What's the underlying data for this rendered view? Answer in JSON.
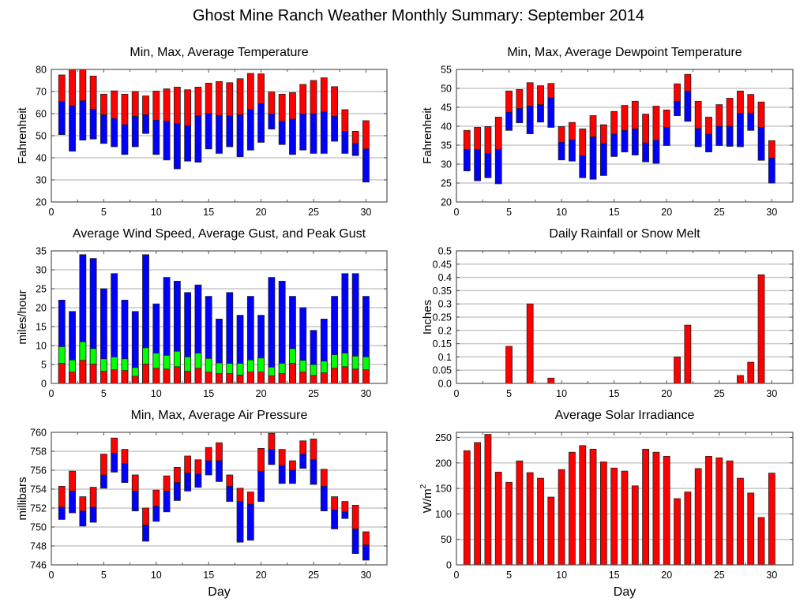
{
  "title": "Ghost Mine Ranch Weather Monthly Summary: September 2014",
  "colors": {
    "red": "#ff0000",
    "blue": "#0000ff",
    "green": "#00ff00",
    "grid": "#c8c8c8",
    "frame": "#555555"
  },
  "chart_data": [
    {
      "id": "temperature",
      "type": "bar",
      "style": "floating-range",
      "title": "Min, Max, Average Temperature",
      "xlabel": "",
      "ylabel": "Fahrenheit",
      "xlim": [
        0,
        32
      ],
      "ylim": [
        20,
        80
      ],
      "xticks": [
        0,
        5,
        10,
        15,
        20,
        25,
        30
      ],
      "yticks": [
        20,
        30,
        40,
        50,
        60,
        70,
        80
      ],
      "grid": true,
      "x": [
        1,
        2,
        3,
        4,
        5,
        6,
        7,
        8,
        9,
        10,
        11,
        12,
        13,
        14,
        15,
        16,
        17,
        18,
        19,
        20,
        21,
        22,
        23,
        24,
        25,
        26,
        27,
        28,
        29,
        30
      ],
      "series": [
        {
          "name": "Min",
          "values": [
            50.5,
            43,
            48,
            48.5,
            46.5,
            45,
            41.5,
            45,
            51,
            41.5,
            39,
            35,
            38.5,
            38,
            44,
            42,
            45,
            40.5,
            43.5,
            47,
            53,
            46,
            41.5,
            43.5,
            42,
            42,
            47.5,
            42,
            41,
            29
          ]
        },
        {
          "name": "Average",
          "values": [
            65.5,
            63.5,
            65.8,
            62,
            59.5,
            57.8,
            55,
            58.8,
            59.5,
            57,
            56.5,
            55.5,
            54.5,
            59,
            60,
            59.2,
            59,
            59.5,
            62,
            64.5,
            59.8,
            56.5,
            57.5,
            59.8,
            60,
            60.8,
            58.8,
            52,
            46.5,
            44
          ]
        },
        {
          "name": "Max",
          "values": [
            77.5,
            80,
            80,
            77,
            68.8,
            70.3,
            68.8,
            70,
            68,
            70.2,
            71.2,
            72,
            70.8,
            72,
            73.8,
            74.5,
            74,
            75.8,
            78.2,
            78,
            69.8,
            68.8,
            69.5,
            73.2,
            75,
            76.2,
            72.2,
            61.8,
            52,
            56.8
          ]
        }
      ]
    },
    {
      "id": "dewpoint",
      "type": "bar",
      "style": "floating-range",
      "title": "Min, Max, Average Dewpoint Temperature",
      "xlabel": "",
      "ylabel": "Fahrenheit",
      "xlim": [
        0,
        32
      ],
      "ylim": [
        20,
        55
      ],
      "xticks": [
        0,
        5,
        10,
        15,
        20,
        25,
        30
      ],
      "yticks": [
        20,
        25,
        30,
        35,
        40,
        45,
        50,
        55
      ],
      "grid": true,
      "x": [
        1,
        2,
        3,
        4,
        5,
        6,
        7,
        8,
        9,
        10,
        11,
        12,
        13,
        14,
        15,
        16,
        17,
        18,
        19,
        20,
        21,
        22,
        23,
        24,
        25,
        26,
        27,
        28,
        29,
        30
      ],
      "series": [
        {
          "name": "Min",
          "values": [
            28.2,
            25.6,
            26.4,
            24.8,
            38.9,
            40.9,
            38,
            41.1,
            39.7,
            31.1,
            30.8,
            26.4,
            26,
            27,
            32,
            33.2,
            32.4,
            30.6,
            30.2,
            34.9,
            42.8,
            41.3,
            34.6,
            33.2,
            34.9,
            34.7,
            34.6,
            38.9,
            31,
            25
          ]
        },
        {
          "name": "Average",
          "values": [
            33.9,
            33.8,
            32.8,
            33.9,
            43.7,
            44.7,
            45.3,
            45.7,
            47.5,
            35.8,
            36.4,
            32.2,
            37.2,
            35.4,
            37.9,
            38.9,
            39.3,
            35.6,
            36.3,
            39.7,
            46.6,
            49.3,
            39.4,
            37.9,
            40,
            40,
            43.4,
            43.4,
            39.7,
            31.6
          ]
        },
        {
          "name": "Max",
          "values": [
            38.9,
            39.7,
            39.9,
            42.4,
            49.3,
            49.7,
            51.5,
            50.7,
            51.3,
            39.9,
            41,
            39.3,
            42.8,
            40.4,
            43.9,
            45.5,
            46.6,
            43.2,
            45.3,
            44.3,
            51.2,
            53.7,
            46.6,
            42.4,
            45.7,
            47.4,
            49.3,
            48.4,
            46.4,
            36.2
          ]
        }
      ]
    },
    {
      "id": "wind",
      "type": "bar",
      "style": "overlaid",
      "title": "Average Wind Speed, Average Gust, and Peak Gust",
      "xlabel": "",
      "ylabel": "miles/hour",
      "xlim": [
        0,
        32
      ],
      "ylim": [
        0,
        35
      ],
      "xticks": [
        0,
        5,
        10,
        15,
        20,
        25,
        30
      ],
      "yticks": [
        0,
        5,
        10,
        15,
        20,
        25,
        30,
        35
      ],
      "grid": true,
      "x": [
        1,
        2,
        3,
        4,
        5,
        6,
        7,
        8,
        9,
        10,
        11,
        12,
        13,
        14,
        15,
        16,
        17,
        18,
        19,
        20,
        21,
        22,
        23,
        24,
        25,
        26,
        27,
        28,
        29,
        30
      ],
      "series": [
        {
          "name": "Peak Gust",
          "values": [
            22,
            19,
            34,
            33,
            25,
            29,
            22,
            19,
            34,
            21,
            28,
            27,
            24,
            26,
            23,
            17,
            24,
            18,
            23,
            18,
            28,
            27,
            23,
            20,
            14,
            17,
            23,
            29,
            29,
            23
          ]
        },
        {
          "name": "Average Gust",
          "values": [
            9.7,
            6.2,
            11,
            9.2,
            6.5,
            7,
            6.5,
            4.2,
            9.4,
            8,
            7.4,
            8.5,
            7,
            8,
            6.6,
            5.4,
            5.3,
            5.3,
            6.2,
            6.7,
            4.3,
            5.3,
            9.2,
            6.1,
            5,
            5.9,
            7.6,
            8,
            7.2,
            7
          ]
        },
        {
          "name": "Average Wind Speed",
          "values": [
            5.3,
            3,
            6.1,
            5.1,
            3.2,
            3.6,
            3.4,
            1.9,
            5.1,
            4,
            3.8,
            4.4,
            3.2,
            4,
            3,
            2.6,
            2.6,
            2.2,
            3,
            3,
            2,
            2.6,
            5.3,
            3,
            2.1,
            2.8,
            4,
            4.4,
            3.8,
            3.6
          ]
        }
      ]
    },
    {
      "id": "rainfall",
      "type": "bar",
      "title": "Daily Rainfall or Snow Melt",
      "xlabel": "",
      "ylabel": "Inches",
      "xlim": [
        0,
        32
      ],
      "ylim": [
        0,
        0.5
      ],
      "xticks": [
        0,
        5,
        10,
        15,
        20,
        25,
        30
      ],
      "yticks": [
        "0.0",
        "0.05",
        "0.1",
        "0.15",
        "0.2",
        "0.25",
        "0.3",
        "0.35",
        "0.4",
        "0.45",
        "0.5"
      ],
      "grid": true,
      "x": [
        5,
        7,
        9,
        21,
        22,
        27,
        28,
        29
      ],
      "values": [
        0.14,
        0.3,
        0.02,
        0.1,
        0.22,
        0.03,
        0.08,
        0.41
      ]
    },
    {
      "id": "pressure",
      "type": "bar",
      "style": "floating-range",
      "title": "Min, Max, Average Air Pressure",
      "xlabel": "Day",
      "ylabel": "millibars",
      "xlim": [
        0,
        32
      ],
      "ylim": [
        746,
        760
      ],
      "xticks": [
        0,
        5,
        10,
        15,
        20,
        25,
        30
      ],
      "yticks": [
        746,
        748,
        750,
        752,
        754,
        756,
        758,
        760
      ],
      "grid": true,
      "x": [
        1,
        2,
        3,
        4,
        5,
        6,
        7,
        8,
        9,
        10,
        11,
        12,
        13,
        14,
        15,
        16,
        17,
        18,
        19,
        20,
        21,
        22,
        23,
        24,
        25,
        26,
        27,
        28,
        29,
        30
      ],
      "series": [
        {
          "name": "Min",
          "values": [
            750.8,
            751.5,
            750.1,
            750.5,
            754.1,
            755.8,
            754.7,
            751.7,
            748.5,
            750.6,
            751.6,
            752.8,
            753.8,
            754.2,
            755.5,
            754.8,
            752.7,
            748.4,
            748.6,
            752.7,
            756.6,
            754.6,
            754.6,
            756.2,
            754.5,
            751.7,
            749.8,
            750.9,
            747.2,
            746.5
          ]
        },
        {
          "name": "Average",
          "values": [
            752.1,
            753.8,
            751.7,
            752.1,
            755.5,
            757.8,
            756.7,
            753.8,
            750.2,
            752.2,
            753.8,
            754.7,
            755.7,
            755.6,
            757,
            757,
            754.3,
            752.7,
            752.4,
            755.9,
            758.2,
            756.5,
            756,
            757.7,
            757.1,
            754.3,
            751.8,
            751.6,
            749.8,
            748.1
          ]
        },
        {
          "name": "Max",
          "values": [
            754.3,
            755.9,
            753.2,
            754.2,
            757.7,
            759.4,
            758.2,
            755.5,
            752,
            753.9,
            755.4,
            756.3,
            757.5,
            757.1,
            758.4,
            758.9,
            755.5,
            754.1,
            753.7,
            758.3,
            759.9,
            758.2,
            757,
            759.1,
            759.3,
            756.1,
            753.2,
            752.7,
            752.3,
            749.5
          ]
        }
      ]
    },
    {
      "id": "solar",
      "type": "bar",
      "title": "Average Solar Irradiance",
      "xlabel": "Day",
      "ylabel": "W/m",
      "ylabel_sup": "2",
      "xlim": [
        0,
        32
      ],
      "ylim": [
        0,
        260
      ],
      "xticks": [
        0,
        5,
        10,
        15,
        20,
        25,
        30
      ],
      "yticks": [
        0,
        50,
        100,
        150,
        200,
        250
      ],
      "grid": true,
      "x": [
        1,
        2,
        3,
        4,
        5,
        6,
        7,
        8,
        9,
        10,
        11,
        12,
        13,
        14,
        15,
        16,
        17,
        18,
        19,
        20,
        21,
        22,
        23,
        24,
        25,
        26,
        27,
        28,
        29,
        30
      ],
      "values": [
        224,
        240,
        256,
        182,
        162,
        204,
        181,
        170,
        133,
        187,
        221,
        234,
        227,
        202,
        190,
        184,
        155,
        227,
        221,
        213,
        130,
        143,
        189,
        213,
        210,
        204,
        170,
        141,
        93,
        180
      ]
    }
  ]
}
